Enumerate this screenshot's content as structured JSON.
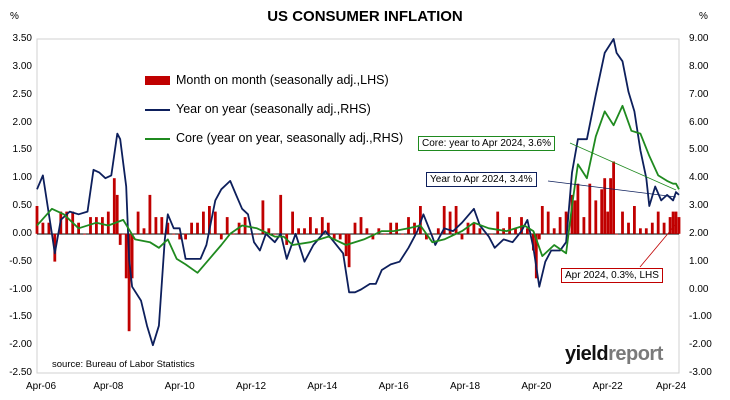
{
  "title": "US CONSUMER INFLATION",
  "units": {
    "left": "%",
    "right": "%"
  },
  "legend": [
    {
      "label": "Month on month (seasonally adj.,LHS)",
      "color": "#c00000",
      "kind": "bar"
    },
    {
      "label": "Year on year (seasonally adj.,RHS)",
      "color": "#0d1f5c",
      "kind": "line"
    },
    {
      "label": "Core (year on year, seasonally adj.,RHS)",
      "color": "#1f8a1f",
      "kind": "line"
    }
  ],
  "source": "source: Bureau of Labor Statistics",
  "logo": {
    "part1": "yield",
    "part2": "report"
  },
  "callouts": {
    "core": "Core: year to Apr 2024, 3.6%",
    "yoy": "Year to Apr 2024, 3.4%",
    "mom": "Apr 2024, 0.3%, LHS"
  },
  "chart_data": {
    "type": "bar+line",
    "title": "US CONSUMER INFLATION",
    "x_tick_labels": [
      "Apr-06",
      "Apr-08",
      "Apr-10",
      "Apr-12",
      "Apr-14",
      "Apr-16",
      "Apr-18",
      "Apr-20",
      "Apr-22",
      "Apr-24"
    ],
    "x_range": [
      "2006-04",
      "2024-04"
    ],
    "y_left": {
      "unit": "%",
      "range": [
        -2.5,
        3.5
      ],
      "ticks": [
        "-2.50",
        "-2.00",
        "-1.50",
        "-1.00",
        "-0.50",
        "0.00",
        "0.50",
        "1.00",
        "1.50",
        "2.00",
        "2.50",
        "3.00",
        "3.50"
      ]
    },
    "y_right": {
      "unit": "%",
      "range": [
        -3.0,
        9.0
      ],
      "ticks": [
        "-3.00",
        "-2.00",
        "-1.00",
        "0.00",
        "1.00",
        "2.00",
        "3.00",
        "4.00",
        "5.00",
        "6.00",
        "7.00",
        "8.00",
        "9.00"
      ]
    },
    "grid": false,
    "series": [
      {
        "name": "Month on month (seasonally adj.,LHS)",
        "type": "bar",
        "axis": "left",
        "points": [
          [
            "2006-04",
            0.5
          ],
          [
            "2006-06",
            0.2
          ],
          [
            "2006-08",
            0.2
          ],
          [
            "2006-10",
            -0.5
          ],
          [
            "2006-12",
            0.4
          ],
          [
            "2007-02",
            0.4
          ],
          [
            "2007-04",
            0.4
          ],
          [
            "2007-06",
            0.2
          ],
          [
            "2007-08",
            0.0
          ],
          [
            "2007-10",
            0.3
          ],
          [
            "2007-12",
            0.3
          ],
          [
            "2008-02",
            0.3
          ],
          [
            "2008-04",
            0.4
          ],
          [
            "2008-06",
            1.0
          ],
          [
            "2008-07",
            0.7
          ],
          [
            "2008-08",
            -0.2
          ],
          [
            "2008-09",
            0.0
          ],
          [
            "2008-10",
            -0.8
          ],
          [
            "2008-11",
            -1.75
          ],
          [
            "2008-12",
            -0.8
          ],
          [
            "2009-02",
            0.4
          ],
          [
            "2009-04",
            0.1
          ],
          [
            "2009-06",
            0.7
          ],
          [
            "2009-08",
            0.3
          ],
          [
            "2009-10",
            0.3
          ],
          [
            "2009-12",
            0.2
          ],
          [
            "2010-02",
            0.0
          ],
          [
            "2010-04",
            -0.1
          ],
          [
            "2010-06",
            -0.1
          ],
          [
            "2010-08",
            0.2
          ],
          [
            "2010-10",
            0.2
          ],
          [
            "2010-12",
            0.4
          ],
          [
            "2011-02",
            0.5
          ],
          [
            "2011-04",
            0.4
          ],
          [
            "2011-06",
            -0.1
          ],
          [
            "2011-08",
            0.3
          ],
          [
            "2011-10",
            0.0
          ],
          [
            "2011-12",
            0.2
          ],
          [
            "2012-02",
            0.3
          ],
          [
            "2012-04",
            0.0
          ],
          [
            "2012-06",
            0.0
          ],
          [
            "2012-08",
            0.6
          ],
          [
            "2012-10",
            0.1
          ],
          [
            "2012-12",
            0.0
          ],
          [
            "2013-02",
            0.7
          ],
          [
            "2013-04",
            -0.2
          ],
          [
            "2013-06",
            0.4
          ],
          [
            "2013-08",
            0.1
          ],
          [
            "2013-10",
            0.1
          ],
          [
            "2013-12",
            0.3
          ],
          [
            "2014-02",
            0.1
          ],
          [
            "2014-04",
            0.3
          ],
          [
            "2014-06",
            0.2
          ],
          [
            "2014-08",
            -0.1
          ],
          [
            "2014-10",
            -0.1
          ],
          [
            "2014-12",
            -0.4
          ],
          [
            "2015-01",
            -0.6
          ],
          [
            "2015-03",
            0.2
          ],
          [
            "2015-05",
            0.3
          ],
          [
            "2015-07",
            0.1
          ],
          [
            "2015-09",
            -0.1
          ],
          [
            "2015-11",
            0.1
          ],
          [
            "2016-01",
            0.0
          ],
          [
            "2016-03",
            0.2
          ],
          [
            "2016-05",
            0.2
          ],
          [
            "2016-07",
            0.0
          ],
          [
            "2016-09",
            0.3
          ],
          [
            "2016-11",
            0.2
          ],
          [
            "2017-01",
            0.5
          ],
          [
            "2017-03",
            -0.1
          ],
          [
            "2017-05",
            0.0
          ],
          [
            "2017-07",
            0.1
          ],
          [
            "2017-09",
            0.5
          ],
          [
            "2017-11",
            0.4
          ],
          [
            "2018-01",
            0.5
          ],
          [
            "2018-03",
            -0.1
          ],
          [
            "2018-05",
            0.2
          ],
          [
            "2018-07",
            0.2
          ],
          [
            "2018-09",
            0.1
          ],
          [
            "2018-11",
            0.0
          ],
          [
            "2019-01",
            0.0
          ],
          [
            "2019-03",
            0.4
          ],
          [
            "2019-05",
            0.1
          ],
          [
            "2019-07",
            0.3
          ],
          [
            "2019-09",
            0.1
          ],
          [
            "2019-11",
            0.3
          ],
          [
            "2020-01",
            0.1
          ],
          [
            "2020-03",
            -0.3
          ],
          [
            "2020-04",
            -0.8
          ],
          [
            "2020-05",
            -0.1
          ],
          [
            "2020-06",
            0.5
          ],
          [
            "2020-08",
            0.4
          ],
          [
            "2020-10",
            0.1
          ],
          [
            "2020-12",
            0.3
          ],
          [
            "2021-02",
            0.4
          ],
          [
            "2021-04",
            0.7
          ],
          [
            "2021-05",
            0.6
          ],
          [
            "2021-06",
            0.9
          ],
          [
            "2021-08",
            0.3
          ],
          [
            "2021-10",
            0.9
          ],
          [
            "2021-12",
            0.6
          ],
          [
            "2022-02",
            0.8
          ],
          [
            "2022-03",
            1.0
          ],
          [
            "2022-04",
            0.4
          ],
          [
            "2022-05",
            1.0
          ],
          [
            "2022-06",
            1.3
          ],
          [
            "2022-07",
            0.0
          ],
          [
            "2022-09",
            0.4
          ],
          [
            "2022-11",
            0.2
          ],
          [
            "2023-01",
            0.5
          ],
          [
            "2023-03",
            0.1
          ],
          [
            "2023-05",
            0.1
          ],
          [
            "2023-07",
            0.2
          ],
          [
            "2023-09",
            0.4
          ],
          [
            "2023-11",
            0.2
          ],
          [
            "2024-01",
            0.3
          ],
          [
            "2024-02",
            0.4
          ],
          [
            "2024-03",
            0.4
          ],
          [
            "2024-04",
            0.3
          ]
        ]
      },
      {
        "name": "Year on year (seasonally adj.,RHS)",
        "type": "line",
        "axis": "right",
        "points": [
          [
            "2006-04",
            3.6
          ],
          [
            "2006-06",
            4.1
          ],
          [
            "2006-09",
            2.0
          ],
          [
            "2006-10",
            1.3
          ],
          [
            "2006-12",
            2.5
          ],
          [
            "2007-03",
            2.8
          ],
          [
            "2007-06",
            2.7
          ],
          [
            "2007-09",
            2.8
          ],
          [
            "2007-11",
            4.3
          ],
          [
            "2008-01",
            4.2
          ],
          [
            "2008-03",
            4.0
          ],
          [
            "2008-05",
            4.1
          ],
          [
            "2008-07",
            5.6
          ],
          [
            "2008-08",
            5.4
          ],
          [
            "2008-10",
            3.7
          ],
          [
            "2008-11",
            1.1
          ],
          [
            "2008-12",
            0.1
          ],
          [
            "2009-03",
            -0.4
          ],
          [
            "2009-05",
            -1.3
          ],
          [
            "2009-07",
            -2.0
          ],
          [
            "2009-09",
            -1.3
          ],
          [
            "2009-11",
            1.8
          ],
          [
            "2009-12",
            2.7
          ],
          [
            "2010-02",
            2.2
          ],
          [
            "2010-04",
            2.2
          ],
          [
            "2010-06",
            1.1
          ],
          [
            "2010-09",
            1.1
          ],
          [
            "2010-11",
            1.1
          ],
          [
            "2011-01",
            1.6
          ],
          [
            "2011-04",
            3.2
          ],
          [
            "2011-06",
            3.6
          ],
          [
            "2011-09",
            3.9
          ],
          [
            "2011-11",
            3.4
          ],
          [
            "2012-01",
            2.9
          ],
          [
            "2012-03",
            2.7
          ],
          [
            "2012-05",
            1.7
          ],
          [
            "2012-07",
            1.4
          ],
          [
            "2012-09",
            2.0
          ],
          [
            "2012-12",
            1.7
          ],
          [
            "2013-02",
            2.0
          ],
          [
            "2013-04",
            1.1
          ],
          [
            "2013-07",
            2.0
          ],
          [
            "2013-10",
            1.0
          ],
          [
            "2014-01",
            1.6
          ],
          [
            "2014-05",
            2.1
          ],
          [
            "2014-08",
            1.7
          ],
          [
            "2014-11",
            1.3
          ],
          [
            "2015-01",
            -0.1
          ],
          [
            "2015-03",
            -0.1
          ],
          [
            "2015-05",
            0.0
          ],
          [
            "2015-08",
            0.2
          ],
          [
            "2015-10",
            0.2
          ],
          [
            "2015-12",
            0.7
          ],
          [
            "2016-03",
            0.9
          ],
          [
            "2016-06",
            1.0
          ],
          [
            "2016-09",
            1.5
          ],
          [
            "2016-12",
            2.1
          ],
          [
            "2017-02",
            2.7
          ],
          [
            "2017-05",
            1.9
          ],
          [
            "2017-06",
            1.6
          ],
          [
            "2017-09",
            2.2
          ],
          [
            "2017-12",
            2.1
          ],
          [
            "2018-03",
            2.4
          ],
          [
            "2018-07",
            2.9
          ],
          [
            "2018-09",
            2.3
          ],
          [
            "2018-12",
            1.9
          ],
          [
            "2019-02",
            1.5
          ],
          [
            "2019-05",
            1.8
          ],
          [
            "2019-08",
            1.7
          ],
          [
            "2019-11",
            2.1
          ],
          [
            "2020-01",
            2.5
          ],
          [
            "2020-03",
            1.5
          ],
          [
            "2020-05",
            0.1
          ],
          [
            "2020-07",
            1.0
          ],
          [
            "2020-09",
            1.4
          ],
          [
            "2020-12",
            1.4
          ],
          [
            "2021-02",
            1.7
          ],
          [
            "2021-04",
            4.2
          ],
          [
            "2021-06",
            5.4
          ],
          [
            "2021-09",
            5.4
          ],
          [
            "2021-12",
            7.0
          ],
          [
            "2022-03",
            8.5
          ],
          [
            "2022-06",
            9.0
          ],
          [
            "2022-07",
            8.5
          ],
          [
            "2022-09",
            8.2
          ],
          [
            "2022-11",
            7.1
          ],
          [
            "2023-01",
            6.4
          ],
          [
            "2023-03",
            5.0
          ],
          [
            "2023-05",
            4.0
          ],
          [
            "2023-06",
            3.0
          ],
          [
            "2023-08",
            3.7
          ],
          [
            "2023-10",
            3.2
          ],
          [
            "2023-12",
            3.4
          ],
          [
            "2024-02",
            3.2
          ],
          [
            "2024-03",
            3.5
          ],
          [
            "2024-04",
            3.4
          ]
        ]
      },
      {
        "name": "Core (year on year, seasonally adj.,RHS)",
        "type": "line",
        "axis": "right",
        "points": [
          [
            "2006-04",
            2.3
          ],
          [
            "2006-09",
            2.9
          ],
          [
            "2007-01",
            2.7
          ],
          [
            "2007-06",
            2.2
          ],
          [
            "2007-12",
            2.4
          ],
          [
            "2008-04",
            2.3
          ],
          [
            "2008-09",
            2.5
          ],
          [
            "2009-01",
            1.8
          ],
          [
            "2009-06",
            1.7
          ],
          [
            "2009-09",
            1.5
          ],
          [
            "2009-12",
            1.8
          ],
          [
            "2010-03",
            1.1
          ],
          [
            "2010-06",
            0.9
          ],
          [
            "2010-10",
            0.6
          ],
          [
            "2011-02",
            1.1
          ],
          [
            "2011-06",
            1.6
          ],
          [
            "2011-09",
            2.0
          ],
          [
            "2012-01",
            2.3
          ],
          [
            "2012-06",
            2.2
          ],
          [
            "2012-12",
            1.9
          ],
          [
            "2013-03",
            1.9
          ],
          [
            "2013-06",
            1.6
          ],
          [
            "2013-12",
            1.7
          ],
          [
            "2014-06",
            1.9
          ],
          [
            "2014-12",
            1.6
          ],
          [
            "2015-06",
            1.8
          ],
          [
            "2015-12",
            2.1
          ],
          [
            "2016-04",
            2.1
          ],
          [
            "2016-09",
            2.2
          ],
          [
            "2017-01",
            2.3
          ],
          [
            "2017-05",
            1.7
          ],
          [
            "2017-09",
            1.8
          ],
          [
            "2018-03",
            2.1
          ],
          [
            "2018-07",
            2.4
          ],
          [
            "2018-12",
            2.2
          ],
          [
            "2019-06",
            2.1
          ],
          [
            "2019-12",
            2.3
          ],
          [
            "2020-03",
            2.1
          ],
          [
            "2020-06",
            1.2
          ],
          [
            "2020-10",
            1.6
          ],
          [
            "2021-02",
            1.3
          ],
          [
            "2021-04",
            3.0
          ],
          [
            "2021-06",
            4.5
          ],
          [
            "2021-09",
            4.0
          ],
          [
            "2021-12",
            5.5
          ],
          [
            "2022-03",
            6.4
          ],
          [
            "2022-06",
            5.9
          ],
          [
            "2022-09",
            6.6
          ],
          [
            "2022-12",
            5.7
          ],
          [
            "2023-03",
            5.6
          ],
          [
            "2023-06",
            4.8
          ],
          [
            "2023-09",
            4.1
          ],
          [
            "2023-12",
            3.9
          ],
          [
            "2024-02",
            3.8
          ],
          [
            "2024-03",
            3.8
          ],
          [
            "2024-04",
            3.6
          ]
        ]
      }
    ]
  }
}
